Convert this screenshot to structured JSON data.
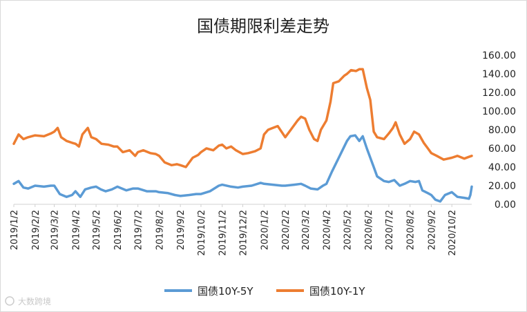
{
  "watermark": "大数跨境",
  "colors": {
    "series_10y_5y": "#5B9BD5",
    "series_10y_1y": "#ED7D31",
    "axis": "#d0d0d0",
    "border": "#d9d9d9"
  },
  "chart_data": {
    "type": "line",
    "title": "国债期限利差走势",
    "xlabel": "",
    "ylabel": "",
    "ylim": [
      0,
      160
    ],
    "y_ticks": [
      "0.00",
      "20.00",
      "40.00",
      "60.00",
      "80.00",
      "100.00",
      "120.00",
      "140.00",
      "160.00"
    ],
    "y_axis_position": "right",
    "grid": false,
    "legend_position": "bottom",
    "x_ticks": [
      "2019/1/2",
      "2019/2/2",
      "2019/3/2",
      "2019/4/2",
      "2019/5/2",
      "2019/6/2",
      "2019/7/2",
      "2019/8/2",
      "2019/9/2",
      "2019/10/2",
      "2019/11/2",
      "2019/12/2",
      "2020/1/2",
      "2020/2/2",
      "2020/3/2",
      "2020/4/2",
      "2020/5/2",
      "2020/6/2",
      "2020/7/2",
      "2020/8/2",
      "2020/9/2",
      "2020/10/2"
    ],
    "x_range": [
      "2019/1/2",
      "2020/10/31"
    ],
    "series": [
      {
        "name": "国债10Y-5Y",
        "points": [
          [
            "2019/1/2",
            22
          ],
          [
            "2019/1/9",
            25
          ],
          [
            "2019/1/16",
            18
          ],
          [
            "2019/1/23",
            17
          ],
          [
            "2019/2/2",
            20
          ],
          [
            "2019/2/15",
            19
          ],
          [
            "2019/2/25",
            20
          ],
          [
            "2019/3/2",
            20
          ],
          [
            "2019/3/10",
            11
          ],
          [
            "2019/3/20",
            8
          ],
          [
            "2019/3/28",
            10
          ],
          [
            "2019/4/2",
            14
          ],
          [
            "2019/4/9",
            8
          ],
          [
            "2019/4/16",
            16
          ],
          [
            "2019/4/25",
            18
          ],
          [
            "2019/5/2",
            19
          ],
          [
            "2019/5/9",
            16
          ],
          [
            "2019/5/16",
            14
          ],
          [
            "2019/5/25",
            16
          ],
          [
            "2019/6/2",
            19
          ],
          [
            "2019/6/15",
            15
          ],
          [
            "2019/6/25",
            17
          ],
          [
            "2019/7/2",
            17
          ],
          [
            "2019/7/15",
            14
          ],
          [
            "2019/7/28",
            14
          ],
          [
            "2019/8/2",
            13
          ],
          [
            "2019/8/15",
            12
          ],
          [
            "2019/8/25",
            10
          ],
          [
            "2019/9/2",
            9
          ],
          [
            "2019/9/15",
            10
          ],
          [
            "2019/9/25",
            11
          ],
          [
            "2019/10/2",
            11
          ],
          [
            "2019/10/15",
            14
          ],
          [
            "2019/10/28",
            20
          ],
          [
            "2019/11/2",
            21
          ],
          [
            "2019/11/15",
            19
          ],
          [
            "2019/11/25",
            18
          ],
          [
            "2019/12/2",
            19
          ],
          [
            "2019/12/15",
            20
          ],
          [
            "2019/12/28",
            23
          ],
          [
            "2020/1/2",
            22
          ],
          [
            "2020/1/15",
            21
          ],
          [
            "2020/1/28",
            20
          ],
          [
            "2020/2/2",
            20
          ],
          [
            "2020/2/15",
            21
          ],
          [
            "2020/2/25",
            22
          ],
          [
            "2020/3/2",
            20
          ],
          [
            "2020/3/10",
            17
          ],
          [
            "2020/3/20",
            16
          ],
          [
            "2020/3/28",
            20
          ],
          [
            "2020/4/2",
            22
          ],
          [
            "2020/4/10",
            35
          ],
          [
            "2020/4/20",
            50
          ],
          [
            "2020/4/28",
            62
          ],
          [
            "2020/5/2",
            68
          ],
          [
            "2020/5/7",
            73
          ],
          [
            "2020/5/14",
            74
          ],
          [
            "2020/5/20",
            68
          ],
          [
            "2020/5/25",
            73
          ],
          [
            "2020/5/31",
            60
          ],
          [
            "2020/6/5",
            50
          ],
          [
            "2020/6/10",
            40
          ],
          [
            "2020/6/15",
            30
          ],
          [
            "2020/6/25",
            25
          ],
          [
            "2020/7/2",
            24
          ],
          [
            "2020/7/10",
            26
          ],
          [
            "2020/7/18",
            20
          ],
          [
            "2020/7/25",
            22
          ],
          [
            "2020/8/2",
            25
          ],
          [
            "2020/8/10",
            24
          ],
          [
            "2020/8/15",
            25
          ],
          [
            "2020/8/20",
            15
          ],
          [
            "2020/8/28",
            12
          ],
          [
            "2020/9/2",
            10
          ],
          [
            "2020/9/8",
            5
          ],
          [
            "2020/9/15",
            3
          ],
          [
            "2020/9/22",
            10
          ],
          [
            "2020/10/2",
            13
          ],
          [
            "2020/10/10",
            8
          ],
          [
            "2020/10/20",
            7
          ],
          [
            "2020/10/27",
            6
          ],
          [
            "2020/10/29",
            10
          ],
          [
            "2020/10/31",
            19
          ]
        ]
      },
      {
        "name": "国债10Y-1Y",
        "points": [
          [
            "2019/1/2",
            65
          ],
          [
            "2019/1/9",
            75
          ],
          [
            "2019/1/16",
            70
          ],
          [
            "2019/1/23",
            72
          ],
          [
            "2019/2/2",
            74
          ],
          [
            "2019/2/15",
            73
          ],
          [
            "2019/2/25",
            76
          ],
          [
            "2019/3/2",
            78
          ],
          [
            "2019/3/7",
            82
          ],
          [
            "2019/3/12",
            72
          ],
          [
            "2019/3/20",
            68
          ],
          [
            "2019/3/28",
            66
          ],
          [
            "2019/4/2",
            65
          ],
          [
            "2019/4/7",
            62
          ],
          [
            "2019/4/12",
            75
          ],
          [
            "2019/4/20",
            82
          ],
          [
            "2019/4/25",
            72
          ],
          [
            "2019/5/2",
            70
          ],
          [
            "2019/5/10",
            65
          ],
          [
            "2019/5/20",
            64
          ],
          [
            "2019/5/28",
            62
          ],
          [
            "2019/6/2",
            62
          ],
          [
            "2019/6/10",
            56
          ],
          [
            "2019/6/20",
            58
          ],
          [
            "2019/6/28",
            52
          ],
          [
            "2019/7/2",
            56
          ],
          [
            "2019/7/10",
            58
          ],
          [
            "2019/7/20",
            55
          ],
          [
            "2019/7/28",
            54
          ],
          [
            "2019/8/2",
            52
          ],
          [
            "2019/8/10",
            45
          ],
          [
            "2019/8/20",
            42
          ],
          [
            "2019/8/28",
            43
          ],
          [
            "2019/9/2",
            42
          ],
          [
            "2019/9/10",
            40
          ],
          [
            "2019/9/20",
            50
          ],
          [
            "2019/9/28",
            53
          ],
          [
            "2019/10/2",
            56
          ],
          [
            "2019/10/10",
            60
          ],
          [
            "2019/10/20",
            58
          ],
          [
            "2019/10/28",
            63
          ],
          [
            "2019/11/2",
            64
          ],
          [
            "2019/11/8",
            60
          ],
          [
            "2019/11/15",
            62
          ],
          [
            "2019/11/22",
            58
          ],
          [
            "2019/12/2",
            54
          ],
          [
            "2019/12/10",
            55
          ],
          [
            "2019/12/20",
            57
          ],
          [
            "2019/12/28",
            60
          ],
          [
            "2020/1/2",
            75
          ],
          [
            "2020/1/8",
            80
          ],
          [
            "2020/1/15",
            82
          ],
          [
            "2020/1/22",
            84
          ],
          [
            "2020/2/2",
            72
          ],
          [
            "2020/2/10",
            80
          ],
          [
            "2020/2/20",
            90
          ],
          [
            "2020/2/25",
            94
          ],
          [
            "2020/3/2",
            92
          ],
          [
            "2020/3/8",
            80
          ],
          [
            "2020/3/15",
            70
          ],
          [
            "2020/3/20",
            68
          ],
          [
            "2020/3/25",
            80
          ],
          [
            "2020/4/2",
            90
          ],
          [
            "2020/4/8",
            110
          ],
          [
            "2020/4/12",
            130
          ],
          [
            "2020/4/20",
            132
          ],
          [
            "2020/4/28",
            138
          ],
          [
            "2020/5/2",
            140
          ],
          [
            "2020/5/8",
            144
          ],
          [
            "2020/5/15",
            143
          ],
          [
            "2020/5/20",
            145
          ],
          [
            "2020/5/25",
            145
          ],
          [
            "2020/5/31",
            125
          ],
          [
            "2020/6/5",
            112
          ],
          [
            "2020/6/10",
            78
          ],
          [
            "2020/6/15",
            72
          ],
          [
            "2020/6/25",
            70
          ],
          [
            "2020/7/2",
            76
          ],
          [
            "2020/7/8",
            82
          ],
          [
            "2020/7/12",
            88
          ],
          [
            "2020/7/18",
            75
          ],
          [
            "2020/7/25",
            65
          ],
          [
            "2020/8/2",
            70
          ],
          [
            "2020/8/8",
            78
          ],
          [
            "2020/8/15",
            75
          ],
          [
            "2020/8/22",
            66
          ],
          [
            "2020/8/28",
            60
          ],
          [
            "2020/9/2",
            55
          ],
          [
            "2020/9/10",
            52
          ],
          [
            "2020/9/20",
            48
          ],
          [
            "2020/10/2",
            50
          ],
          [
            "2020/10/10",
            52
          ],
          [
            "2020/10/20",
            49
          ],
          [
            "2020/10/27",
            51
          ],
          [
            "2020/10/31",
            52
          ]
        ]
      }
    ]
  }
}
